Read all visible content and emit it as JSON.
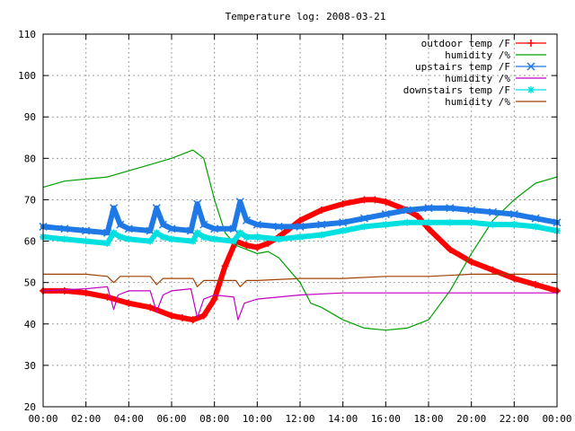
{
  "chart_data": {
    "type": "line",
    "title": "Temperature log: 2008-03-21",
    "xlabel": "",
    "ylabel": "",
    "xlim": [
      0,
      24
    ],
    "ylim": [
      20,
      110
    ],
    "x_ticks": [
      "00:00",
      "02:00",
      "04:00",
      "06:00",
      "08:00",
      "10:00",
      "12:00",
      "14:00",
      "16:00",
      "18:00",
      "20:00",
      "22:00",
      "00:00"
    ],
    "y_ticks": [
      "20",
      "30",
      "40",
      "50",
      "60",
      "70",
      "80",
      "90",
      "100",
      "110"
    ],
    "grid": true,
    "legend_position": "top-right",
    "series": [
      {
        "name": "outdoor temp /F",
        "color": "#ff0000",
        "marker": "plus",
        "x": [
          0,
          1,
          2,
          3,
          4,
          5,
          6,
          6.5,
          7,
          7.5,
          8,
          8.5,
          9,
          9.5,
          10,
          10.5,
          11,
          11.5,
          12,
          13,
          14,
          15,
          15.5,
          16,
          17,
          17.5,
          18,
          19,
          20,
          21,
          22,
          23,
          24
        ],
        "y": [
          48,
          48,
          47.5,
          46.5,
          45,
          44,
          42,
          41.5,
          41,
          42,
          46,
          54,
          60,
          59,
          58.5,
          59.5,
          61,
          63,
          65,
          67.5,
          69,
          70,
          70,
          69.5,
          67.5,
          66,
          63,
          58,
          55,
          53,
          51,
          49.5,
          48
        ]
      },
      {
        "name": "humidity /%",
        "color": "#00a000",
        "marker": "none",
        "x": [
          0,
          1,
          2,
          3,
          4,
          5,
          6,
          7,
          7.5,
          8,
          8.5,
          9,
          9.5,
          10,
          10.5,
          11,
          11.5,
          12,
          12.5,
          13,
          14,
          15,
          16,
          17,
          18,
          19,
          20,
          21,
          22,
          23,
          24
        ],
        "y": [
          73,
          74.5,
          75,
          75.5,
          77,
          78.5,
          80,
          82,
          80,
          70,
          62,
          59,
          58,
          57,
          57.5,
          56,
          53,
          50,
          45,
          44,
          41,
          39,
          38.5,
          39,
          41,
          48,
          57,
          65,
          70,
          74,
          75.5
        ]
      },
      {
        "name": "upstairs temp /F",
        "color": "#1e78e6",
        "marker": "cross",
        "x": [
          0,
          1,
          2,
          3,
          3.3,
          3.6,
          4,
          5,
          5.3,
          5.6,
          6,
          6.9,
          7.2,
          7.5,
          8,
          8.9,
          9.2,
          9.5,
          10,
          11,
          12,
          13,
          14,
          15,
          16,
          17,
          18,
          19,
          20,
          21,
          22,
          23,
          24
        ],
        "y": [
          63.5,
          63,
          62.5,
          62,
          68,
          64,
          63,
          62.5,
          68,
          64,
          63,
          62.5,
          69,
          64,
          63,
          63,
          69.5,
          65,
          64,
          63.5,
          63.5,
          64,
          64.5,
          65.5,
          66.5,
          67.5,
          68,
          68,
          67.5,
          67,
          66.5,
          65.5,
          64.5
        ]
      },
      {
        "name": "humidity /%",
        "color": "#c000c0",
        "marker": "none",
        "x": [
          0,
          2,
          3,
          3.3,
          3.5,
          4,
          5,
          5.3,
          5.6,
          6,
          6.9,
          7.2,
          7.5,
          8,
          8.9,
          9.1,
          9.4,
          10,
          12,
          14,
          16,
          18,
          20,
          22,
          24
        ],
        "y": [
          48,
          48.5,
          49,
          43.5,
          47,
          48,
          48,
          43,
          47,
          48,
          48.5,
          41.5,
          46,
          47,
          46.5,
          41,
          45,
          46,
          47,
          47.5,
          47.5,
          47.5,
          47.5,
          47.5,
          47.5
        ]
      },
      {
        "name": "downstairs temp /F",
        "color": "#00e0e0",
        "marker": "star",
        "x": [
          0,
          1,
          2,
          3,
          3.3,
          3.6,
          4,
          5,
          5.3,
          5.6,
          6,
          7,
          7.2,
          7.5,
          8,
          8.9,
          9.2,
          9.5,
          10,
          11,
          12,
          13,
          14,
          15,
          16,
          17,
          18,
          19,
          20,
          21,
          22,
          23,
          24
        ],
        "y": [
          61,
          60.5,
          60,
          59.5,
          62,
          61,
          60.5,
          60,
          62,
          61,
          60.5,
          60,
          62,
          61,
          60.5,
          60,
          62,
          61,
          61,
          60.5,
          61,
          61.5,
          62.5,
          63.5,
          64,
          64.5,
          64.5,
          64.5,
          64.5,
          64,
          64,
          63.5,
          62.5
        ]
      },
      {
        "name": "humidity /%",
        "color": "#a04000",
        "marker": "none",
        "x": [
          0,
          1,
          2,
          3,
          3.3,
          3.6,
          4,
          5,
          5.3,
          5.6,
          6,
          7,
          7.2,
          7.5,
          8,
          9,
          9.2,
          9.5,
          10,
          12,
          14,
          16,
          18,
          20,
          22,
          24
        ],
        "y": [
          52,
          52,
          52,
          51.5,
          50,
          51.5,
          51.5,
          51.5,
          49.5,
          51,
          51,
          51,
          49,
          50.5,
          50.5,
          50.5,
          49,
          50.5,
          50.5,
          51,
          51,
          51.5,
          51.5,
          52,
          52,
          52
        ]
      }
    ]
  }
}
